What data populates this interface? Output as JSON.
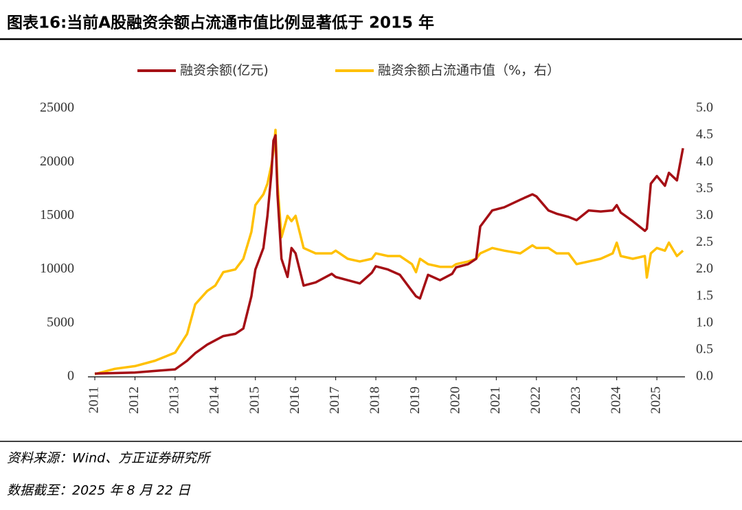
{
  "chart_data": {
    "type": "line",
    "title": "图表16:当前A股融资余额占流通市值比例显著低于 2015 年",
    "source": "资料来源：Wind、方正证券研究所",
    "note": "数据截至：2025 年 8 月 22 日",
    "x": [
      2011.0,
      2011.5,
      2012.0,
      2012.5,
      2013.0,
      2013.3,
      2013.5,
      2013.8,
      2014.0,
      2014.2,
      2014.5,
      2014.7,
      2014.9,
      2015.0,
      2015.2,
      2015.3,
      2015.4,
      2015.45,
      2015.5,
      2015.55,
      2015.65,
      2015.8,
      2015.9,
      2016.0,
      2016.2,
      2016.5,
      2016.9,
      2017.0,
      2017.3,
      2017.6,
      2017.9,
      2018.0,
      2018.3,
      2018.6,
      2018.9,
      2019.0,
      2019.1,
      2019.3,
      2019.6,
      2019.9,
      2020.0,
      2020.3,
      2020.5,
      2020.6,
      2020.9,
      2021.2,
      2021.6,
      2021.9,
      2022.0,
      2022.3,
      2022.5,
      2022.8,
      2023.0,
      2023.3,
      2023.6,
      2023.9,
      2024.0,
      2024.1,
      2024.4,
      2024.7,
      2024.75,
      2024.85,
      2025.0,
      2025.2,
      2025.3,
      2025.5,
      2025.65
    ],
    "series": [
      {
        "name": "融资余额(亿元)",
        "color": "#a50f15",
        "values": [
          300,
          350,
          400,
          550,
          700,
          1500,
          2200,
          3000,
          3400,
          3800,
          4000,
          4500,
          7500,
          10000,
          12000,
          15000,
          19000,
          22000,
          22500,
          17000,
          11000,
          9300,
          12000,
          11500,
          8500,
          8800,
          9600,
          9300,
          9000,
          8700,
          9700,
          10300,
          10000,
          9500,
          8000,
          7500,
          7300,
          9500,
          9000,
          9600,
          10200,
          10500,
          11000,
          14000,
          15500,
          15800,
          16500,
          17000,
          16800,
          15500,
          15200,
          14900,
          14600,
          15500,
          15400,
          15500,
          16000,
          15300,
          14500,
          13600,
          13800,
          18000,
          18700,
          17800,
          19000,
          18300,
          21300
        ]
      },
      {
        "name": "融资余额占流通市值（%，右）",
        "color": "#ffc000",
        "axis": "y2",
        "values": [
          0.05,
          0.15,
          0.2,
          0.3,
          0.45,
          0.8,
          1.35,
          1.6,
          1.7,
          1.95,
          2.0,
          2.2,
          2.7,
          3.2,
          3.4,
          3.6,
          3.95,
          4.2,
          4.6,
          3.6,
          2.6,
          3.0,
          2.9,
          3.0,
          2.4,
          2.3,
          2.3,
          2.35,
          2.2,
          2.15,
          2.2,
          2.3,
          2.25,
          2.25,
          2.1,
          1.95,
          2.2,
          2.1,
          2.05,
          2.05,
          2.1,
          2.15,
          2.2,
          2.3,
          2.4,
          2.35,
          2.3,
          2.45,
          2.4,
          2.4,
          2.3,
          2.3,
          2.1,
          2.15,
          2.2,
          2.3,
          2.5,
          2.25,
          2.2,
          2.25,
          1.85,
          2.3,
          2.4,
          2.35,
          2.5,
          2.25,
          2.35
        ]
      }
    ],
    "xlim": [
      2011,
      2025.7
    ],
    "xticks": [
      2011,
      2012,
      2013,
      2014,
      2015,
      2016,
      2017,
      2018,
      2019,
      2020,
      2021,
      2022,
      2023,
      2024,
      2025
    ],
    "ylim": [
      0,
      25000
    ],
    "yticks": [
      0,
      5000,
      10000,
      15000,
      20000,
      25000
    ],
    "y2lim": [
      0,
      5
    ],
    "y2ticks": [
      {
        "value": 0,
        "label": "0.0"
      },
      0.5,
      {
        "value": 1,
        "label": "1.0"
      },
      1.5,
      {
        "value": 2,
        "label": "2.0"
      },
      2.5,
      {
        "value": 3,
        "label": "3.0"
      },
      3.5,
      {
        "value": 4,
        "label": "4.0"
      },
      4.5,
      {
        "value": 5,
        "label": "5.0"
      }
    ],
    "grid": false
  }
}
